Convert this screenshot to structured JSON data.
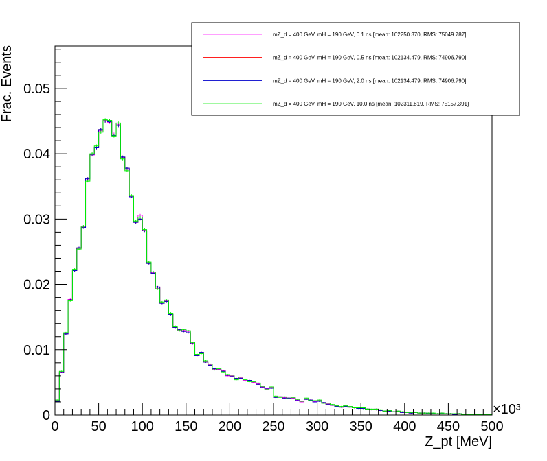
{
  "chart_data": {
    "type": "line",
    "style": "step-histogram-with-error-bars",
    "xlabel": "Z_pt [MeV]",
    "ylabel": "Frac. Events",
    "x_multiplier": "×10³",
    "xlim": [
      0,
      500
    ],
    "ylim": [
      0,
      0.0565
    ],
    "x_ticks": [
      "0",
      "50",
      "100",
      "150",
      "200",
      "250",
      "300",
      "350",
      "400",
      "450",
      "500"
    ],
    "y_ticks": [
      "0",
      "0.01",
      "0.02",
      "0.03",
      "0.04",
      "0.05"
    ],
    "bin_width": 5,
    "grid": false,
    "legend_position": "top-right",
    "x": [
      2.5,
      7.5,
      12.5,
      17.5,
      22.5,
      27.5,
      32.5,
      37.5,
      42.5,
      47.5,
      52.5,
      57.5,
      62.5,
      67.5,
      72.5,
      77.5,
      82.5,
      87.5,
      92.5,
      97.5,
      102.5,
      107.5,
      112.5,
      117.5,
      122.5,
      127.5,
      132.5,
      137.5,
      142.5,
      147.5,
      152.5,
      157.5,
      162.5,
      167.5,
      172.5,
      177.5,
      182.5,
      187.5,
      192.5,
      197.5,
      202.5,
      207.5,
      212.5,
      217.5,
      222.5,
      227.5,
      232.5,
      237.5,
      242.5,
      247.5,
      252.5,
      257.5,
      262.5,
      267.5,
      272.5,
      277.5,
      282.5,
      287.5,
      292.5,
      297.5,
      302.5,
      307.5,
      312.5,
      317.5,
      322.5,
      327.5,
      332.5,
      337.5,
      342.5,
      347.5,
      352.5,
      357.5,
      362.5,
      367.5,
      372.5,
      377.5,
      382.5,
      387.5,
      392.5,
      397.5,
      402.5,
      407.5,
      412.5,
      417.5,
      422.5,
      427.5,
      432.5,
      437.5,
      442.5,
      447.5,
      452.5,
      457.5,
      462.5,
      467.5,
      472.5,
      477.5,
      482.5,
      487.5,
      492.5,
      497.5
    ],
    "series": [
      {
        "name": "mZ_d = 400 GeV, mH = 190 GeV, 0.1 ns [mean: 102250.370, RMS: 75049.787]",
        "color": "#ff00ff",
        "values": [
          0.0022,
          0.0066,
          0.0125,
          0.0177,
          0.0222,
          0.0255,
          0.0288,
          0.036,
          0.0398,
          0.041,
          0.0435,
          0.0451,
          0.0448,
          0.043,
          0.0445,
          0.0394,
          0.0376,
          0.0335,
          0.0296,
          0.0306,
          0.0283,
          0.0233,
          0.0218,
          0.0194,
          0.0172,
          0.0175,
          0.0155,
          0.0135,
          0.013,
          0.013,
          0.0128,
          0.011,
          0.0092,
          0.0095,
          0.0082,
          0.0077,
          0.007,
          0.007,
          0.0068,
          0.006,
          0.006,
          0.0055,
          0.0057,
          0.0053,
          0.0052,
          0.005,
          0.0048,
          0.0043,
          0.004,
          0.0042,
          0.0028,
          0.0028,
          0.0027,
          0.0025,
          0.0026,
          0.0023,
          0.002,
          0.0025,
          0.0023,
          0.0021,
          0.0022,
          0.0018,
          0.0017,
          0.0015,
          0.0014,
          0.0012,
          0.0014,
          0.0013,
          0.0011,
          0.0011,
          0.001,
          0.0009,
          0.0008,
          0.0009,
          0.0007,
          0.0006,
          0.0006,
          0.0005,
          0.0006,
          0.0004,
          0.0004,
          0.0003,
          0.0004,
          0.0003,
          0.0003,
          0.0003,
          0.0002,
          0.0002,
          0.0003,
          0.0002,
          0.0002,
          0.0001,
          0.0002,
          0.0001,
          0.0001,
          0.0001,
          0.0001,
          0.0001,
          0.0001,
          0.0001
        ]
      },
      {
        "name": "mZ_d = 400 GeV, mH = 190 GeV, 0.5 ns [mean: 102134.479, RMS: 74906.790]",
        "color": "#ff0000",
        "values": [
          0.0021,
          0.0065,
          0.0124,
          0.0176,
          0.0221,
          0.0256,
          0.0287,
          0.0362,
          0.0399,
          0.0409,
          0.0437,
          0.045,
          0.0449,
          0.0428,
          0.0443,
          0.0395,
          0.0378,
          0.0334,
          0.0295,
          0.03,
          0.0282,
          0.0232,
          0.0217,
          0.0196,
          0.0171,
          0.0174,
          0.0154,
          0.0134,
          0.0131,
          0.0128,
          0.0126,
          0.0109,
          0.0091,
          0.0096,
          0.0081,
          0.0076,
          0.0071,
          0.0069,
          0.0067,
          0.0061,
          0.0059,
          0.0056,
          0.0056,
          0.0052,
          0.0053,
          0.0049,
          0.0047,
          0.0042,
          0.0041,
          0.0041,
          0.0027,
          0.0028,
          0.0026,
          0.0026,
          0.0025,
          0.0022,
          0.0021,
          0.0024,
          0.0023,
          0.002,
          0.0021,
          0.0019,
          0.0016,
          0.0015,
          0.0013,
          0.0012,
          0.0013,
          0.0012,
          0.0011,
          0.001,
          0.001,
          0.0009,
          0.0008,
          0.0008,
          0.0007,
          0.0006,
          0.0006,
          0.0005,
          0.0005,
          0.0004,
          0.0004,
          0.0003,
          0.0004,
          0.0003,
          0.0003,
          0.0002,
          0.0002,
          0.0002,
          0.0002,
          0.0002,
          0.0002,
          0.0001,
          0.0002,
          0.0001,
          0.0001,
          0.0001,
          0.0001,
          0.0001,
          0.0001,
          0.0001
        ]
      },
      {
        "name": "mZ_d = 400 GeV, mH = 190 GeV, 2.0 ns [mean: 102134.479, RMS: 74906.790]",
        "color": "#0000cc",
        "values": [
          0.0021,
          0.0065,
          0.0124,
          0.0176,
          0.0221,
          0.0256,
          0.0287,
          0.0362,
          0.0399,
          0.0409,
          0.0437,
          0.045,
          0.0449,
          0.0428,
          0.0443,
          0.0395,
          0.0378,
          0.0334,
          0.0295,
          0.03,
          0.0282,
          0.0232,
          0.0217,
          0.0196,
          0.0171,
          0.0174,
          0.0154,
          0.0134,
          0.0131,
          0.0128,
          0.0126,
          0.0109,
          0.0091,
          0.0096,
          0.0081,
          0.0076,
          0.0071,
          0.0069,
          0.0067,
          0.0061,
          0.0059,
          0.0056,
          0.0056,
          0.0052,
          0.0053,
          0.0049,
          0.0047,
          0.0042,
          0.0041,
          0.0041,
          0.0027,
          0.0028,
          0.0026,
          0.0026,
          0.0025,
          0.0022,
          0.0021,
          0.0024,
          0.0023,
          0.002,
          0.0021,
          0.0019,
          0.0016,
          0.0015,
          0.0013,
          0.0012,
          0.0013,
          0.0012,
          0.0011,
          0.001,
          0.001,
          0.0009,
          0.0008,
          0.0008,
          0.0007,
          0.0006,
          0.0006,
          0.0005,
          0.0005,
          0.0004,
          0.0004,
          0.0003,
          0.0004,
          0.0003,
          0.0003,
          0.0002,
          0.0002,
          0.0002,
          0.0002,
          0.0002,
          0.0002,
          0.0001,
          0.0002,
          0.0001,
          0.0001,
          0.0001,
          0.0001,
          0.0001,
          0.0001,
          0.0001
        ]
      },
      {
        "name": "mZ_d = 400 GeV, mH = 190 GeV, 10.0 ns [mean: 102311.819, RMS: 75157.391]",
        "color": "#00ee00",
        "values": [
          0.0023,
          0.0067,
          0.0126,
          0.0175,
          0.0223,
          0.0254,
          0.0289,
          0.0358,
          0.04,
          0.0412,
          0.0433,
          0.0452,
          0.0451,
          0.0427,
          0.0447,
          0.0392,
          0.0374,
          0.0336,
          0.0297,
          0.0303,
          0.0284,
          0.0234,
          0.0219,
          0.0193,
          0.0173,
          0.0176,
          0.0156,
          0.0136,
          0.0129,
          0.0131,
          0.0129,
          0.0111,
          0.0093,
          0.0094,
          0.0083,
          0.0078,
          0.0069,
          0.0071,
          0.0066,
          0.0062,
          0.0061,
          0.0054,
          0.0058,
          0.0054,
          0.0051,
          0.0051,
          0.0049,
          0.0044,
          0.0039,
          0.0043,
          0.0029,
          0.0027,
          0.0028,
          0.0025,
          0.0027,
          0.0024,
          0.0021,
          0.0026,
          0.0022,
          0.0022,
          0.0023,
          0.0018,
          0.0018,
          0.0016,
          0.0014,
          0.0013,
          0.0014,
          0.0013,
          0.0011,
          0.0011,
          0.0011,
          0.0009,
          0.0009,
          0.0009,
          0.0008,
          0.0006,
          0.0007,
          0.0005,
          0.0006,
          0.0005,
          0.0004,
          0.0004,
          0.0004,
          0.0003,
          0.0003,
          0.0003,
          0.0003,
          0.0002,
          0.0003,
          0.0002,
          0.0002,
          0.0002,
          0.0002,
          0.0001,
          0.0001,
          0.0001,
          0.0001,
          0.0001,
          0.0001,
          0.0001
        ]
      }
    ]
  }
}
